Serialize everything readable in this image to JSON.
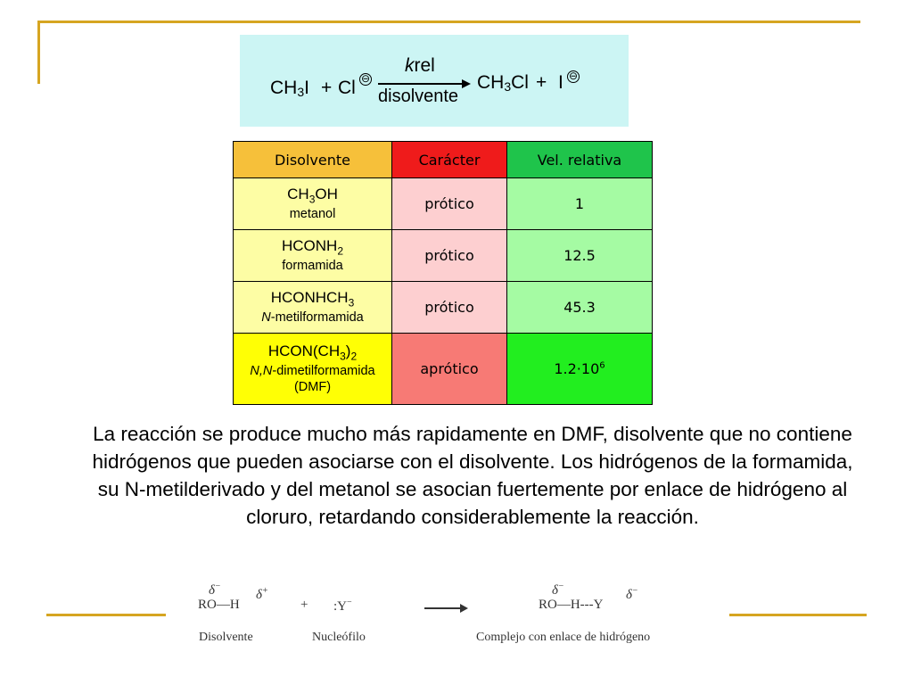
{
  "reaction": {
    "reactant1": "CH",
    "reactant1_sub": "3",
    "reactant1_end": "I",
    "plus": "+",
    "reactant2": "Cl",
    "k": "k",
    "k_sub": "rel",
    "condition": "disolvente",
    "product1": "CH",
    "product1_sub": "3",
    "product1_end": "Cl",
    "product2": "I",
    "charge_symbol": "⊖"
  },
  "table": {
    "headers": [
      "Disolvente",
      "Carácter",
      "Vel. relativa"
    ],
    "rows": [
      {
        "formula": "CH",
        "formula_sub": "3",
        "formula_end": "OH",
        "name": "metanol",
        "character": "prótico",
        "value": "1"
      },
      {
        "formula": "HCONH",
        "formula_sub": "2",
        "formula_end": "",
        "name": "formamida",
        "character": "prótico",
        "value": "12.5"
      },
      {
        "formula": "HCONHCH",
        "formula_sub": "3",
        "formula_end": "",
        "name_italic": "N",
        "name": "-metilformamida",
        "character": "prótico",
        "value": "45.3"
      },
      {
        "formula": "HCON(CH",
        "formula_sub": "3",
        "formula_end": ")",
        "formula_sub2": "2",
        "name_italic": "N,N",
        "name": "-dimetilformamida",
        "name2": "(DMF)",
        "character": "aprótico",
        "value": "1.2·10",
        "value_sup": "6"
      }
    ]
  },
  "paragraph": "La reacción se produce mucho más rapidamente en DMF, disolvente que no contiene hidrógenos que pueden asociarse con el disolvente. Los hidrógenos de la formamida, su N-metilderivado y del metanol se asocian fuertemente por enlace de hidrógeno al cloruro, retardando considerablemente la reacción.",
  "diagram": {
    "left": "RO—H",
    "delta": "δ",
    "minus": "−",
    "plus_charge": "+",
    "plus": "+",
    "nucleophile": ":Y",
    "right": "RO—H---Y",
    "label_solvent": "Disolvente",
    "label_nucleophile": "Nucleófilo",
    "label_complex": "Complejo con enlace de hidrógeno"
  },
  "colors": {
    "accent_lines": "#d6a521",
    "reaction_box": "#ccf5f4",
    "header_solvent": "#f6c03a",
    "header_character": "#ef1b1b",
    "header_rate": "#1fc44b"
  }
}
